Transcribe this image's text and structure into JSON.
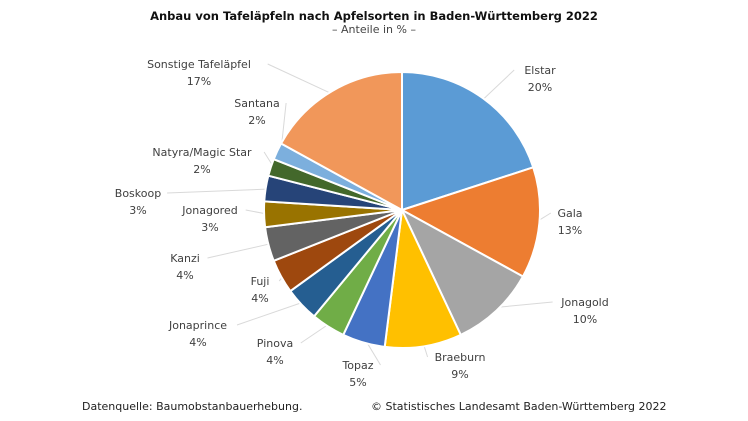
{
  "chart_data": {
    "type": "pie",
    "title": "Anbau von Tafeläpfeln nach Apfelsorten in Baden-Württemberg 2022",
    "subtitle": "– Anteile in % –",
    "slices": [
      {
        "label": "Elstar",
        "value": 20,
        "value_label": "20%",
        "color": "#5B9BD5"
      },
      {
        "label": "Gala",
        "value": 13,
        "value_label": "13%",
        "color": "#ED7D31"
      },
      {
        "label": "Jonagold",
        "value": 10,
        "value_label": "10%",
        "color": "#A5A5A5"
      },
      {
        "label": "Braeburn",
        "value": 9,
        "value_label": "9%",
        "color": "#FFC000"
      },
      {
        "label": "Topaz",
        "value": 5,
        "value_label": "5%",
        "color": "#4472C4"
      },
      {
        "label": "Pinova",
        "value": 4,
        "value_label": "4%",
        "color": "#70AD47"
      },
      {
        "label": "Jonaprince",
        "value": 4,
        "value_label": "4%",
        "color": "#255E91"
      },
      {
        "label": "Fuji",
        "value": 4,
        "value_label": "4%",
        "color": "#9E480E"
      },
      {
        "label": "Kanzi",
        "value": 4,
        "value_label": "4%",
        "color": "#636363"
      },
      {
        "label": "Jonagored",
        "value": 3,
        "value_label": "3%",
        "color": "#997300"
      },
      {
        "label": "Boskoop",
        "value": 3,
        "value_label": "3%",
        "color": "#264478"
      },
      {
        "label": "Natyra/Magic Star",
        "value": 2,
        "value_label": "2%",
        "color": "#43682B"
      },
      {
        "label": "Santana",
        "value": 2,
        "value_label": "2%",
        "color": "#7CAFDD"
      },
      {
        "label": "Sonstige Tafeläpfel",
        "value": 17,
        "value_label": "17%",
        "color": "#F1975A"
      }
    ]
  },
  "footer": {
    "source": "Datenquelle: Baumobstanbauerhebung.",
    "copyright": "© Statistisches Landesamt Baden-Württemberg 2022"
  }
}
